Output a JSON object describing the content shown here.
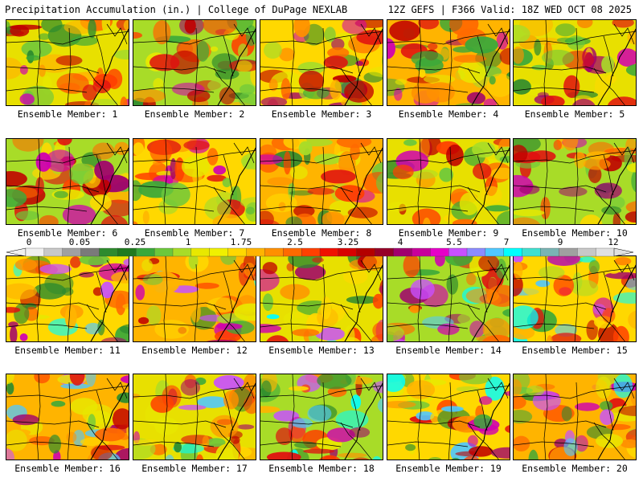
{
  "header": {
    "title_left": "Precipitation Accumulation (in.) | College of DuPage NEXLAB",
    "title_right": "12Z GEFS | F366 Valid: 18Z WED OCT 08 2025"
  },
  "colorbar": {
    "labels": [
      "0",
      "0.05",
      "0.25",
      "1",
      "1.75",
      "2.5",
      "3.25",
      "4",
      "5.5",
      "7",
      "9",
      "12"
    ],
    "colors": [
      "#f0f0f0",
      "#c8c8c8",
      "#a0a0a0",
      "#7a7a7a",
      "#2e8b2e",
      "#1f7a1f",
      "#3aa83a",
      "#6cc83c",
      "#a8dc28",
      "#e8e800",
      "#f0f000",
      "#ffd800",
      "#ffb400",
      "#ff9000",
      "#ff6a00",
      "#ff4000",
      "#f01000",
      "#d80000",
      "#b40000",
      "#960028",
      "#a0006e",
      "#c8009a",
      "#e600c8",
      "#c850ff",
      "#8c8cff",
      "#50c8ff",
      "#00ffff",
      "#40e0d0",
      "#7ab4b4",
      "#a0a0a0",
      "#c8c8c8",
      "#e0e0e0"
    ]
  },
  "panels": [
    {
      "label": "Ensemble Member: 1"
    },
    {
      "label": "Ensemble Member: 2"
    },
    {
      "label": "Ensemble Member: 3"
    },
    {
      "label": "Ensemble Member: 4"
    },
    {
      "label": "Ensemble Member: 5"
    },
    {
      "label": "Ensemble Member: 6"
    },
    {
      "label": "Ensemble Member: 7"
    },
    {
      "label": "Ensemble Member: 8"
    },
    {
      "label": "Ensemble Member: 9"
    },
    {
      "label": "Ensemble Member: 10"
    },
    {
      "label": "Ensemble Member: 11"
    },
    {
      "label": "Ensemble Member: 12"
    },
    {
      "label": "Ensemble Member: 13"
    },
    {
      "label": "Ensemble Member: 14"
    },
    {
      "label": "Ensemble Member: 15"
    },
    {
      "label": "Ensemble Member: 16"
    },
    {
      "label": "Ensemble Member: 17"
    },
    {
      "label": "Ensemble Member: 18"
    },
    {
      "label": "Ensemble Member: 19"
    },
    {
      "label": "Ensemble Member: 20"
    }
  ]
}
